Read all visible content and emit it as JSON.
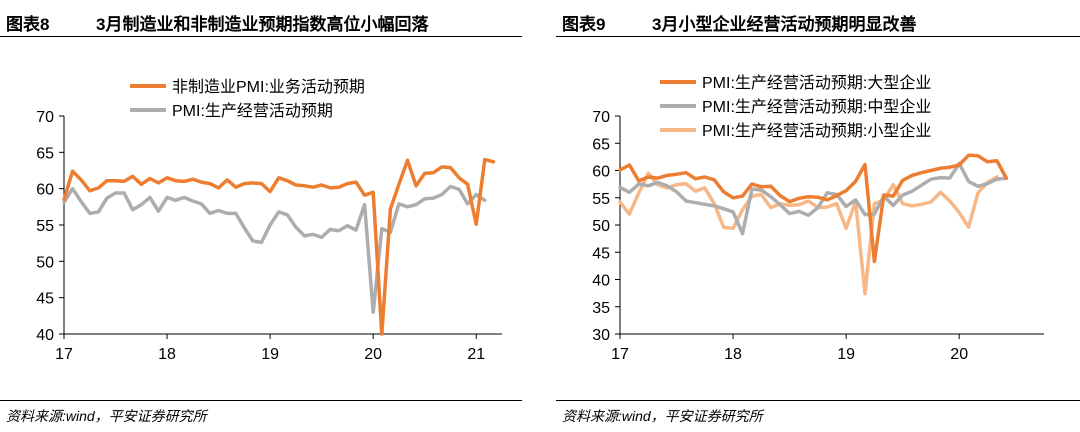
{
  "colors": {
    "orange": "#ED7D31",
    "gray": "#ADADAD",
    "light_orange": "#F7B787"
  },
  "panels": [
    {
      "label": "图表8",
      "title": "3月制造业和非制造业预期指数高位小幅回落",
      "source": "资料来源:wind，平安证券研究所"
    },
    {
      "label": "图表9",
      "title": "3月小型企业经营活动预期明显改善",
      "source": "资料来源:wind，平安证券研究所"
    }
  ],
  "chart_data": [
    {
      "type": "line",
      "ylim": [
        40,
        70
      ],
      "yticks": [
        40,
        45,
        50,
        55,
        60,
        65,
        70
      ],
      "xlim": [
        0,
        51
      ],
      "xticks": [
        {
          "label": "17",
          "at": 0
        },
        {
          "label": "18",
          "at": 12
        },
        {
          "label": "19",
          "at": 24
        },
        {
          "label": "20",
          "at": 36
        },
        {
          "label": "21",
          "at": 48
        }
      ],
      "legend_position": "top-center",
      "series": [
        {
          "name": "非制造业PMI:业务活动预期",
          "color_key": "orange",
          "values": [
            58.5,
            62.4,
            61.2,
            59.7,
            60.1,
            61.1,
            61.1,
            61.0,
            61.7,
            60.6,
            61.4,
            60.8,
            61.5,
            61.1,
            61.0,
            61.3,
            60.9,
            60.7,
            60.1,
            61.2,
            60.2,
            60.7,
            60.8,
            60.7,
            59.6,
            61.5,
            61.1,
            60.5,
            60.4,
            60.2,
            60.5,
            60.1,
            60.2,
            60.7,
            60.9,
            59.1,
            59.5,
            40.0,
            57.2,
            60.6,
            63.9,
            60.4,
            62.1,
            62.2,
            63.0,
            62.9,
            61.5,
            60.6,
            55.1,
            64.0,
            63.7
          ]
        },
        {
          "name": "PMI:生产经营活动预期",
          "color_key": "gray",
          "values": [
            58.1,
            60.0,
            58.2,
            56.6,
            56.8,
            58.7,
            59.4,
            59.4,
            57.1,
            57.8,
            58.8,
            56.9,
            58.8,
            58.4,
            58.8,
            58.3,
            57.9,
            56.6,
            57.0,
            56.6,
            56.6,
            54.6,
            52.8,
            52.6,
            55.0,
            56.8,
            56.4,
            54.7,
            53.5,
            53.7,
            53.3,
            54.4,
            54.2,
            54.9,
            54.3,
            57.8,
            43.0,
            54.5,
            54.0,
            57.9,
            57.5,
            57.8,
            58.6,
            58.7,
            59.2,
            60.3,
            59.9,
            57.9,
            59.2,
            58.4
          ]
        }
      ]
    },
    {
      "type": "line",
      "ylim": [
        30,
        70
      ],
      "yticks": [
        30,
        35,
        40,
        45,
        50,
        55,
        60,
        65,
        70
      ],
      "xlim": [
        0,
        45
      ],
      "xticks": [
        {
          "label": "17",
          "at": 0
        },
        {
          "label": "18",
          "at": 12
        },
        {
          "label": "19",
          "at": 24
        },
        {
          "label": "20",
          "at": 36
        }
      ],
      "legend_position": "top-center",
      "series": [
        {
          "name": "PMI:生产经营活动预期:大型企业",
          "color_key": "orange",
          "values": [
            60.1,
            61.0,
            58.1,
            58.8,
            58.6,
            59.1,
            59.3,
            59.6,
            58.5,
            58.8,
            58.3,
            56.1,
            55.0,
            55.3,
            57.5,
            57.0,
            57.1,
            55.4,
            54.3,
            54.9,
            55.2,
            55.1,
            54.6,
            55.4,
            56.3,
            58.0,
            61.1,
            43.3,
            55.5,
            55.3,
            58.2,
            59.1,
            59.6,
            60.0,
            60.4,
            60.6,
            61.0,
            62.8,
            62.7,
            61.6,
            61.8,
            58.6
          ]
        },
        {
          "name": "PMI:生产经营活动预期:中型企业",
          "color_key": "gray",
          "values": [
            56.9,
            56.0,
            57.5,
            57.2,
            57.8,
            57.2,
            56.1,
            54.4,
            54.1,
            53.8,
            53.5,
            53.0,
            52.4,
            48.4,
            56.6,
            56.4,
            55.2,
            53.7,
            52.1,
            52.5,
            51.8,
            53.2,
            55.9,
            55.6,
            53.4,
            54.6,
            51.9,
            52.0,
            55.3,
            53.6,
            55.5,
            56.2,
            57.3,
            58.4,
            58.7,
            58.6,
            61.3,
            58.0,
            57.1,
            57.6,
            58.4,
            58.6
          ]
        },
        {
          "name": "PMI:生产经营活动预期:小型企业",
          "color_key": "light_orange",
          "values": [
            54.2,
            52.0,
            55.9,
            59.5,
            57.4,
            56.8,
            57.4,
            57.6,
            56.2,
            56.8,
            53.9,
            49.6,
            49.4,
            52.8,
            55.3,
            55.6,
            53.2,
            53.9,
            53.6,
            53.7,
            54.4,
            53.2,
            53.3,
            53.9,
            49.4,
            54.3,
            37.4,
            53.9,
            54.6,
            57.4,
            53.9,
            53.5,
            53.8,
            54.2,
            56.0,
            54.4,
            52.3,
            49.6,
            55.9,
            57.8,
            58.8
          ]
        }
      ]
    }
  ]
}
